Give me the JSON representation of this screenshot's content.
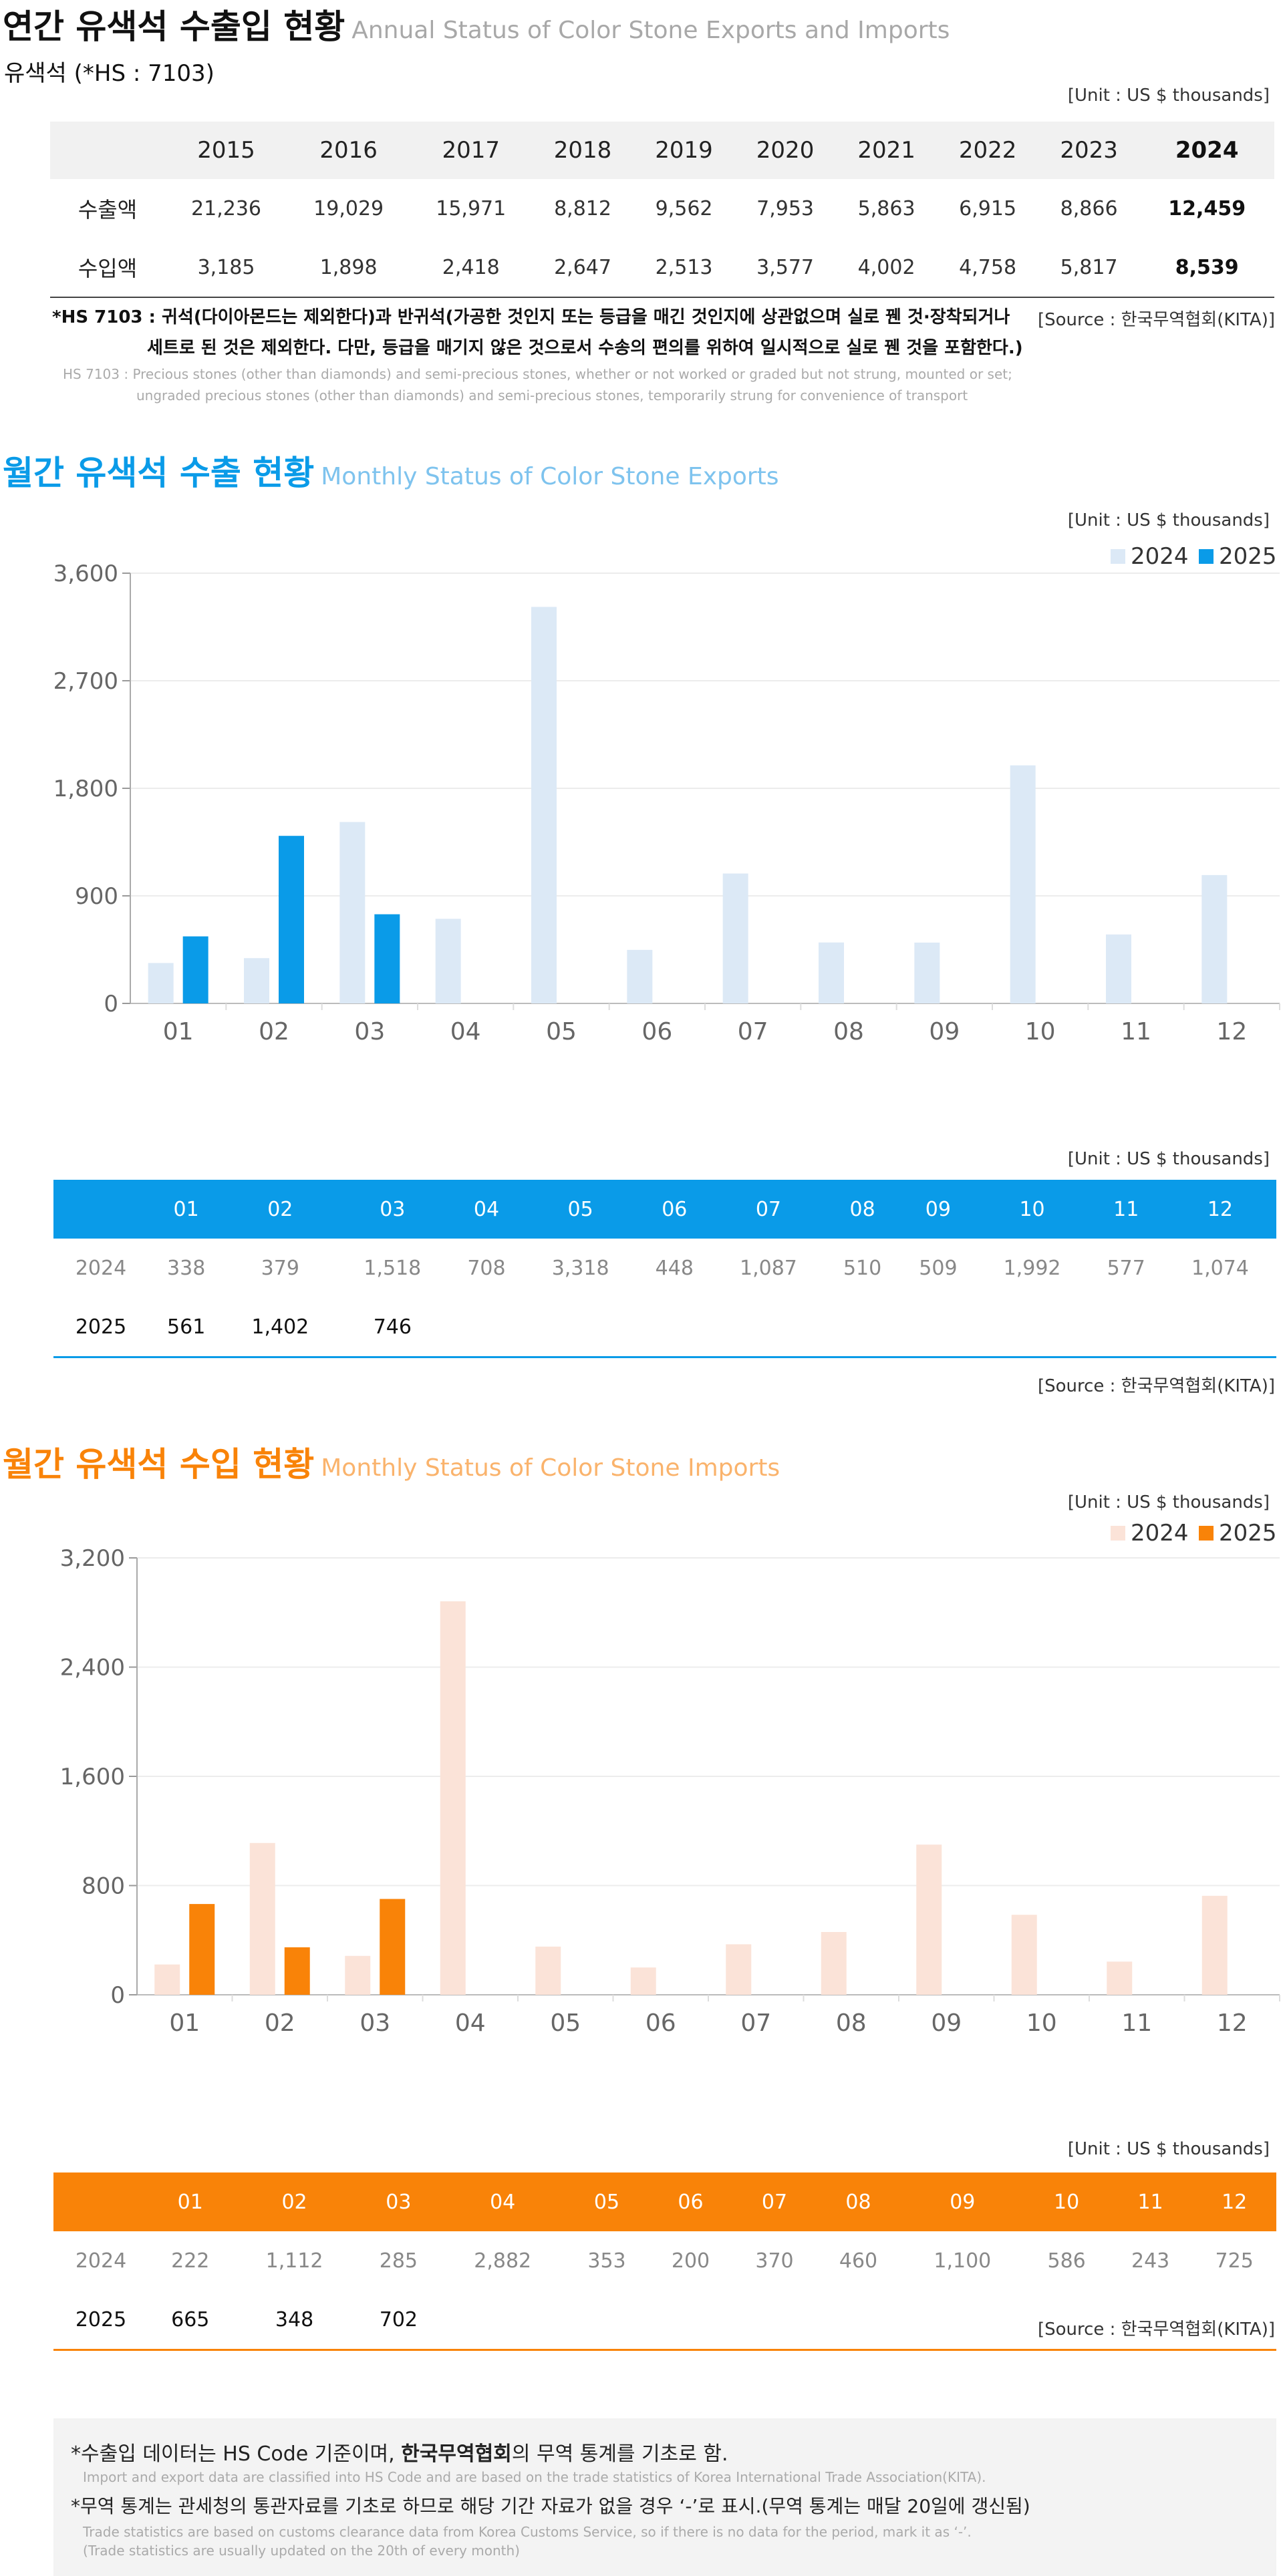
{
  "annual": {
    "title_ko": "연간 유색석 수출입 현황",
    "title_en": "Annual Status of Color Stone Exports and Imports",
    "subtitle": "유색석 (*HS : 7103)",
    "unit": "[Unit : US $ thousands]",
    "years": [
      "2015",
      "2016",
      "2017",
      "2018",
      "2019",
      "2020",
      "2021",
      "2022",
      "2023",
      "2024"
    ],
    "rows": [
      {
        "label": "수출액",
        "values": [
          "21,236",
          "19,029",
          "15,971",
          "8,812",
          "9,562",
          "7,953",
          "5,863",
          "6,915",
          "8,866",
          "12,459"
        ]
      },
      {
        "label": "수입액",
        "values": [
          "3,185",
          "1,898",
          "2,418",
          "2,647",
          "2,513",
          "3,577",
          "4,002",
          "4,758",
          "5,817",
          "8,539"
        ]
      }
    ],
    "note_line1": "*HS 7103 : 귀석(다이아몬드는 제외한다)과 반귀석(가공한 것인지 또는 등급을 매긴 것인지에 상관없으며 실로 꿴 것·장착되거나",
    "note_line2": "세트로 된 것은 제외한다. 다만, 등급을 매기지 않은 것으로서 수송의 편의를 위하여 일시적으로 실로 꿴 것을 포함한다.)",
    "note_en1": "HS 7103 : Precious stones (other than diamonds) and semi-precious stones, whether or not worked or graded but not strung, mounted or set;",
    "note_en2": "ungraded precious stones (other than diamonds) and semi-precious stones, temporarily strung for convenience of transport",
    "source": "[Source : 한국무역협회(KITA)]"
  },
  "exports": {
    "title_ko": "월간 유색석 수출 현황",
    "title_en": "Monthly Status of Color Stone Exports",
    "unit": "[Unit : US $ thousands]",
    "table_unit": "[Unit : US $ thousands]",
    "source": "[Source : 한국무역협회(KITA)]",
    "months": [
      "01",
      "02",
      "03",
      "04",
      "05",
      "06",
      "07",
      "08",
      "09",
      "10",
      "11",
      "12"
    ],
    "row2024_label": "2024",
    "row2025_label": "2025",
    "row2024": [
      "338",
      "379",
      "1,518",
      "708",
      "3,318",
      "448",
      "1,087",
      "510",
      "509",
      "1,992",
      "577",
      "1,074"
    ],
    "row2025": [
      "561",
      "1,402",
      "746",
      "",
      "",
      "",
      "",
      "",
      "",
      "",
      "",
      ""
    ]
  },
  "imports": {
    "title_ko": "월간 유색석 수입 현황",
    "title_en": "Monthly Status of Color Stone Imports",
    "unit": "[Unit : US $ thousands]",
    "table_unit": "[Unit : US $ thousands]",
    "source": "[Source : 한국무역협회(KITA)]",
    "months": [
      "01",
      "02",
      "03",
      "04",
      "05",
      "06",
      "07",
      "08",
      "09",
      "10",
      "11",
      "12"
    ],
    "row2024_label": "2024",
    "row2025_label": "2025",
    "row2024": [
      "222",
      "1,112",
      "285",
      "2,882",
      "353",
      "200",
      "370",
      "460",
      "1,100",
      "586",
      "243",
      "725"
    ],
    "row2025": [
      "665",
      "348",
      "702",
      "",
      "",
      "",
      "",
      "",
      "",
      "",
      "",
      ""
    ]
  },
  "footer": {
    "note1_pre": "*수출입 데이터는 HS Code 기준이며, ",
    "note1_bold": "한국무역협회",
    "note1_post": "의 무역 통계를 기초로 함.",
    "note1_en": "Import and export data are classified into HS Code and are based on the trade statistics of Korea International  Trade Association(KITA).",
    "note2": "*무역 통계는 관세청의  통관자료를 기초로 하므로 해당 기간 자료가 없을 경우 ‘-’로 표시.(무역 통계는 매달 20일에 갱신됨)",
    "note2_en1": "Trade statistics are based on customs clearance data from Korea Customs Service, so if there is no data for the period, mark it as ‘-’.",
    "note2_en2": "(Trade statistics are usually updated on the 20th of every month)"
  },
  "colors": {
    "export_2024": "#dce9f6",
    "export_2025": "#0a9be8",
    "import_2024": "#fbe3d8",
    "import_2025": "#f98308"
  },
  "chart_data": [
    {
      "type": "bar",
      "categories": [
        "01",
        "02",
        "03",
        "04",
        "05",
        "06",
        "07",
        "08",
        "09",
        "10",
        "11",
        "12"
      ],
      "series": [
        {
          "name": "2024",
          "values": [
            338,
            379,
            1518,
            708,
            3318,
            448,
            1087,
            510,
            509,
            1992,
            577,
            1074
          ]
        },
        {
          "name": "2025",
          "values": [
            561,
            1402,
            746,
            null,
            null,
            null,
            null,
            null,
            null,
            null,
            null,
            null
          ]
        }
      ],
      "yticks": [
        "0",
        "900",
        "1,800",
        "2,700",
        "3,600"
      ],
      "ylim": [
        0,
        3600
      ],
      "grid": true,
      "legend": "top-right"
    },
    {
      "type": "bar",
      "categories": [
        "01",
        "02",
        "03",
        "04",
        "05",
        "06",
        "07",
        "08",
        "09",
        "10",
        "11",
        "12"
      ],
      "series": [
        {
          "name": "2024",
          "values": [
            222,
            1112,
            285,
            2882,
            353,
            200,
            370,
            460,
            1100,
            586,
            243,
            725
          ]
        },
        {
          "name": "2025",
          "values": [
            665,
            348,
            702,
            null,
            null,
            null,
            null,
            null,
            null,
            null,
            null,
            null
          ]
        }
      ],
      "yticks": [
        "0",
        "800",
        "1,600",
        "2,400",
        "3,200"
      ],
      "ylim": [
        0,
        3200
      ],
      "grid": true,
      "legend": "top-right"
    }
  ]
}
